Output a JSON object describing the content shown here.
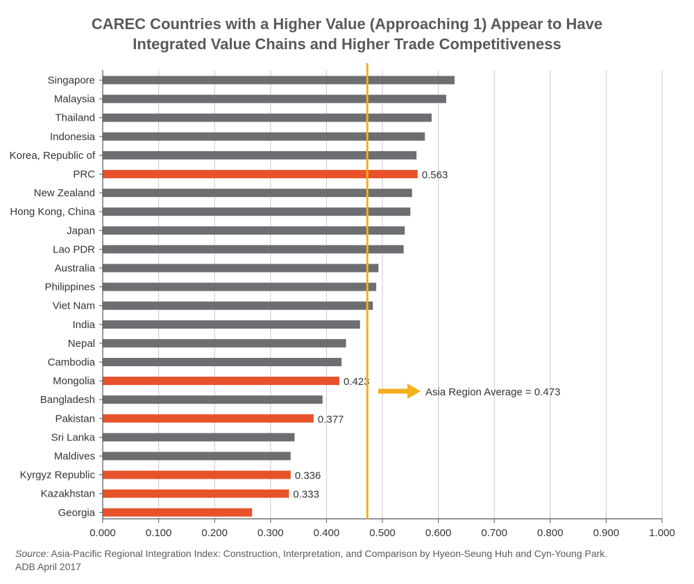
{
  "title": {
    "line1": "CAREC Countries with a Higher Value (Approaching 1) Appear to Have",
    "line2": "Integrated Value Chains and Higher Trade Competitiveness"
  },
  "source": {
    "label": "Source:",
    "text": " Asia-Pacific Regional Integration Index: Construction, Interpretation, and Comparison by Hyeon-Seung Huh and Cyn-Young Park.",
    "text2": "ADB April 2017"
  },
  "colors": {
    "default_bar": "#6d6e71",
    "highlight_bar": "#e8522b",
    "average_line": "#f2b01e",
    "grid": "#c8c8c8",
    "text": "#333333"
  },
  "chart_data": {
    "type": "bar",
    "orientation": "horizontal",
    "title": "CAREC Countries with a Higher Value (Approaching 1) Appear to Have Integrated Value Chains and Higher Trade Competitiveness",
    "xlim": [
      0,
      1
    ],
    "grid": true,
    "x_ticks": [
      "0.000",
      "0.100",
      "0.200",
      "0.300",
      "0.400",
      "0.500",
      "0.600",
      "0.700",
      "0.800",
      "0.900",
      "1.000"
    ],
    "categories": [
      "Singapore",
      "Malaysia",
      "Thailand",
      "Indonesia",
      "Korea, Republic of",
      "PRC",
      "New Zealand",
      "Hong Kong, China",
      "Japan",
      "Lao PDR",
      "Australia",
      "Philippines",
      "Viet Nam",
      "India",
      "Nepal",
      "Cambodia",
      "Mongolia",
      "Bangladesh",
      "Pakistan",
      "Sri Lanka",
      "Maldives",
      "Kyrgyz Republic",
      "Kazakhstan",
      "Georgia"
    ],
    "values": [
      0.629,
      0.614,
      0.588,
      0.576,
      0.561,
      0.563,
      0.553,
      0.55,
      0.54,
      0.538,
      0.493,
      0.489,
      0.483,
      0.46,
      0.435,
      0.427,
      0.423,
      0.393,
      0.377,
      0.343,
      0.336,
      0.336,
      0.333,
      0.267
    ],
    "highlighted": [
      "PRC",
      "Mongolia",
      "Pakistan",
      "Kyrgyz Republic",
      "Kazakhstan",
      "Georgia"
    ],
    "data_labels": [
      {
        "category": "PRC",
        "text": "0.563"
      },
      {
        "category": "Mongolia",
        "text": "0.423"
      },
      {
        "category": "Pakistan",
        "text": "0.377"
      },
      {
        "category": "Kyrgyz Republic",
        "text": "0.336"
      },
      {
        "category": "Kazakhstan",
        "text": "0.333"
      }
    ],
    "reference_line": {
      "value": 0.473,
      "label": "Asia Region Average = 0.473"
    }
  }
}
